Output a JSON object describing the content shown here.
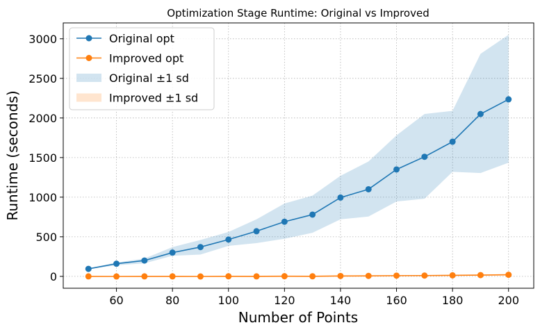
{
  "chart_data": {
    "type": "line",
    "title": "Optimization Stage Runtime: Original vs Improved",
    "xlabel": "Number of Points",
    "ylabel": "Runtime (seconds)",
    "xlim": [
      41,
      209
    ],
    "ylim": [
      -150,
      3200
    ],
    "xticks": [
      60,
      80,
      100,
      120,
      140,
      160,
      180,
      200
    ],
    "yticks": [
      0,
      500,
      1000,
      1500,
      2000,
      2500,
      3000
    ],
    "grid": true,
    "legend_position": "top-left",
    "x": [
      50,
      60,
      70,
      80,
      90,
      100,
      110,
      120,
      130,
      140,
      150,
      160,
      170,
      180,
      190,
      200
    ],
    "series": [
      {
        "name": "Original opt",
        "color": "#1f77b4",
        "values": [
          95,
          160,
          200,
          300,
          370,
          465,
          570,
          690,
          780,
          995,
          1100,
          1350,
          1510,
          1700,
          2050,
          2235
        ],
        "band_lower": [
          90,
          140,
          165,
          260,
          275,
          385,
          420,
          475,
          550,
          720,
          755,
          945,
          980,
          1320,
          1305,
          1435
        ],
        "band_upper": [
          100,
          175,
          225,
          370,
          460,
          560,
          720,
          920,
          1020,
          1270,
          1450,
          1780,
          2050,
          2090,
          2810,
          3050
        ]
      },
      {
        "name": "Improved opt",
        "color": "#ff7f0e",
        "values": [
          0,
          -1,
          0,
          0,
          -1,
          1,
          0,
          2,
          1,
          5,
          6,
          9,
          10,
          13,
          16,
          20
        ],
        "band_lower": [
          -3,
          -4,
          -3,
          -3,
          -4,
          -2,
          -3,
          -1,
          -2,
          1,
          2,
          4,
          5,
          7,
          9,
          12
        ],
        "band_upper": [
          3,
          2,
          3,
          3,
          2,
          4,
          3,
          5,
          4,
          9,
          10,
          14,
          15,
          19,
          23,
          28
        ]
      }
    ],
    "legend": [
      {
        "label": "Original opt",
        "kind": "line",
        "color": "#1f77b4"
      },
      {
        "label": "Improved opt",
        "kind": "line",
        "color": "#ff7f0e"
      },
      {
        "label": "Original ±1 sd",
        "kind": "band",
        "color": "#1f77b4"
      },
      {
        "label": "Improved ±1 sd",
        "kind": "band",
        "color": "#ff7f0e"
      }
    ]
  }
}
